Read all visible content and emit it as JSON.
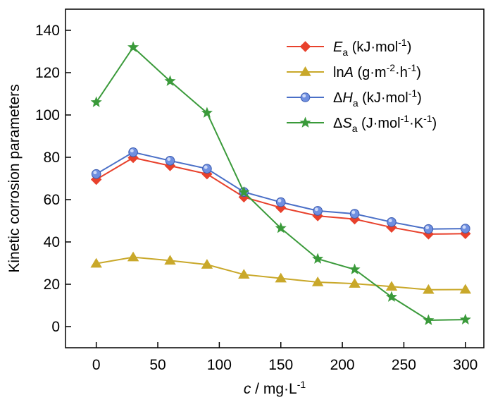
{
  "chart_data": {
    "type": "line",
    "title": "",
    "xlabel": {
      "var": "c",
      "rest": " / mg·L",
      "sup": "-1"
    },
    "ylabel": "Kinetic corrosion parameters",
    "xlim": [
      -25,
      315
    ],
    "ylim": [
      -10,
      150
    ],
    "xticks": [
      0,
      50,
      100,
      150,
      200,
      250,
      300
    ],
    "yticks": [
      0,
      20,
      40,
      60,
      80,
      100,
      120,
      140
    ],
    "x": [
      0,
      30,
      60,
      90,
      120,
      150,
      180,
      210,
      240,
      270,
      300
    ],
    "grid": false,
    "legend_position": "top-right",
    "series": [
      {
        "name": "Ea (kJ·mol-1)",
        "label_parts": [
          [
            "i",
            "E"
          ],
          [
            "sub",
            "a"
          ],
          [
            "t",
            " (kJ·mol"
          ],
          [
            "sup",
            "-1"
          ],
          [
            "t",
            ")"
          ]
        ],
        "marker": "diamond",
        "line_color": "#e8412c",
        "marker_color": "#e8412c",
        "values": [
          69.5,
          79.8,
          76.0,
          72.1,
          61.2,
          56.2,
          52.3,
          50.8,
          46.9,
          43.7,
          43.9
        ]
      },
      {
        "name": "lnA (g·m-2·h-1)",
        "label_parts": [
          [
            "t",
            "ln"
          ],
          [
            "i",
            "A"
          ],
          [
            "t",
            " (g·m"
          ],
          [
            "sup",
            "-2"
          ],
          [
            "t",
            "·h"
          ],
          [
            "sup",
            "-1"
          ],
          [
            "t",
            ")"
          ]
        ],
        "marker": "triangle",
        "line_color": "#c9a82a",
        "marker_color": "#c9a82a",
        "values": [
          29.8,
          32.8,
          31.2,
          29.3,
          24.6,
          22.8,
          21.0,
          20.3,
          18.9,
          17.4,
          17.5
        ]
      },
      {
        "name": "ΔHa (kJ·mol-1)",
        "label_parts": [
          [
            "t",
            "Δ"
          ],
          [
            "i",
            "H"
          ],
          [
            "sub",
            "a"
          ],
          [
            "t",
            " (kJ·mol"
          ],
          [
            "sup",
            "-1"
          ],
          [
            "t",
            ")"
          ]
        ],
        "marker": "circle",
        "line_color": "#4a6fc7",
        "marker_color": "#6f8fe0",
        "values": [
          72.1,
          82.4,
          78.4,
          74.6,
          63.6,
          58.8,
          54.7,
          53.3,
          49.4,
          46.1,
          46.3
        ]
      },
      {
        "name": "ΔSa (J·mol-1·K-1)",
        "label_parts": [
          [
            "t",
            "Δ"
          ],
          [
            "i",
            "S"
          ],
          [
            "sub",
            "a"
          ],
          [
            "t",
            " (J·mol"
          ],
          [
            "sup",
            "-1"
          ],
          [
            "t",
            "·K"
          ],
          [
            "sup",
            "-1"
          ],
          [
            "t",
            ")"
          ]
        ],
        "marker": "star",
        "line_color": "#3a9a3a",
        "marker_color": "#3a9a3a",
        "values": [
          106.0,
          132.0,
          116.0,
          101.0,
          63.5,
          46.5,
          32.0,
          27.0,
          14.0,
          3.0,
          3.3
        ]
      }
    ]
  }
}
